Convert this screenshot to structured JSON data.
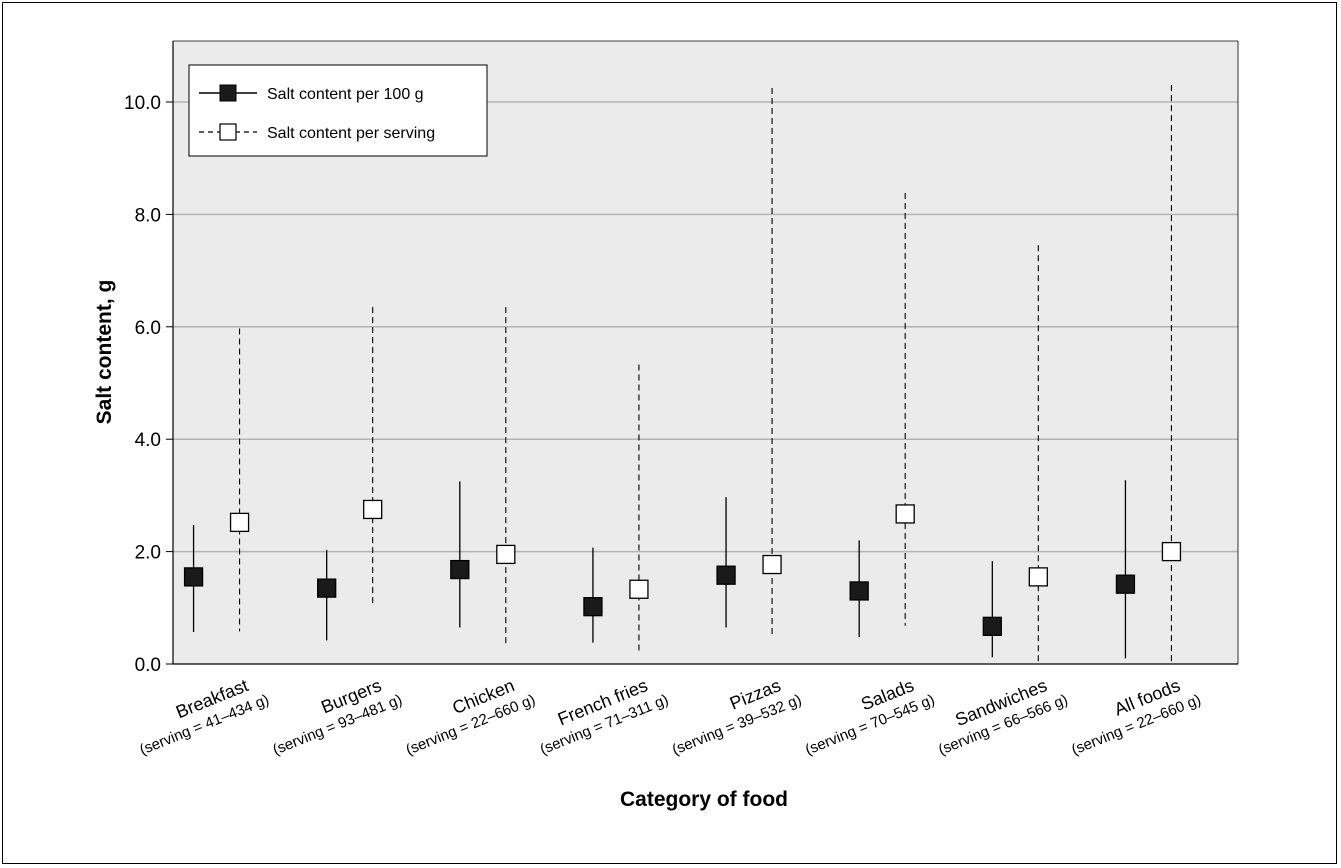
{
  "chart_data": {
    "type": "errorbar",
    "title": "",
    "xlabel": "Category of food",
    "ylabel": "Salt content, g",
    "ylim": [
      0,
      11
    ],
    "yticks": [
      "0.0",
      "2.0",
      "4.0",
      "6.0",
      "8.0",
      "10.0"
    ],
    "grid": "horizontal",
    "legend_position": "top-left",
    "categories": [
      {
        "name": "Breakfast",
        "sub": "(serving = 41–434 g)"
      },
      {
        "name": "Burgers",
        "sub": "(serving = 93–481 g)"
      },
      {
        "name": "Chicken",
        "sub": "(serving = 22–660 g)"
      },
      {
        "name": "French fries",
        "sub": "(serving = 71–311 g)"
      },
      {
        "name": "Pizzas",
        "sub": "(serving = 39–532 g)"
      },
      {
        "name": "Salads",
        "sub": "(serving = 70–545 g)"
      },
      {
        "name": "Sandwiches",
        "sub": "(serving = 66–566 g)"
      },
      {
        "name": "All foods",
        "sub": "(serving = 22–660 g)"
      }
    ],
    "series": [
      {
        "name": "Salt content per 100 g",
        "marker": "filled-square",
        "line": "solid",
        "values": [
          1.55,
          1.35,
          1.68,
          1.02,
          1.58,
          1.3,
          0.67,
          1.42
        ],
        "low": [
          0.57,
          0.42,
          0.65,
          0.38,
          0.65,
          0.48,
          0.12,
          0.1
        ],
        "high": [
          2.47,
          2.03,
          3.25,
          2.07,
          2.97,
          2.2,
          1.83,
          3.27
        ]
      },
      {
        "name": "Salt content per serving",
        "marker": "open-square",
        "line": "dashed",
        "values": [
          2.52,
          2.75,
          1.95,
          1.33,
          1.77,
          2.67,
          1.55,
          2.0
        ],
        "low": [
          0.58,
          1.03,
          0.33,
          0.23,
          0.47,
          0.68,
          0.05,
          0.03
        ],
        "high": [
          5.97,
          6.35,
          6.35,
          5.33,
          10.25,
          8.38,
          7.45,
          10.3
        ]
      }
    ]
  }
}
